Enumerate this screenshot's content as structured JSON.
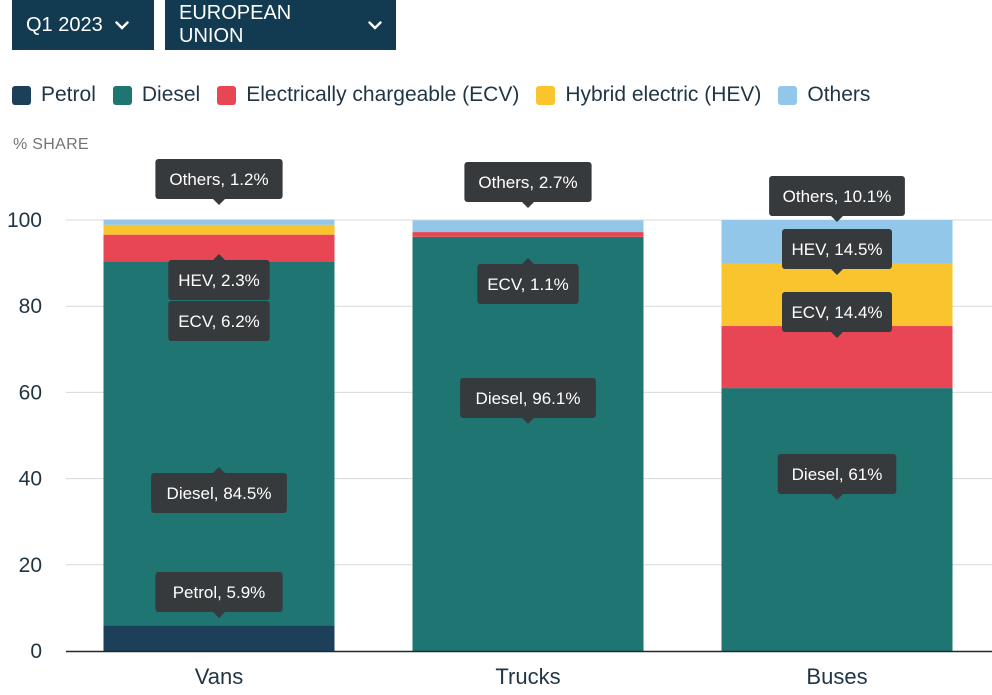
{
  "filters": {
    "period": "Q1 2023",
    "region": "EUROPEAN UNION"
  },
  "chart_data": {
    "type": "bar",
    "stacked": true,
    "ylabel": "% SHARE",
    "xlabel": "",
    "ylim": [
      0,
      100
    ],
    "yticks": [
      0,
      20,
      40,
      60,
      80,
      100
    ],
    "grid": true,
    "legend_position": "top-left",
    "categories": [
      "Vans",
      "Trucks",
      "Buses"
    ],
    "series": [
      {
        "name": "Petrol",
        "color": "#1c3f5a",
        "values": [
          5.9,
          0,
          0
        ]
      },
      {
        "name": "Diesel",
        "color": "#1f7572",
        "values": [
          84.5,
          96.1,
          61
        ]
      },
      {
        "name": "Electrically chargeable (ECV)",
        "color": "#e84654",
        "values": [
          6.2,
          1.1,
          14.4
        ]
      },
      {
        "name": "Hybrid electric (HEV)",
        "color": "#fac42f",
        "values": [
          2.3,
          0,
          14.5
        ]
      },
      {
        "name": "Others",
        "color": "#92c7e9",
        "values": [
          1.2,
          2.7,
          10.1
        ]
      }
    ],
    "data_labels": [
      {
        "category": "Vans",
        "text": "Others, 1.2%"
      },
      {
        "category": "Vans",
        "text": "HEV, 2.3%"
      },
      {
        "category": "Vans",
        "text": "ECV, 6.2%"
      },
      {
        "category": "Vans",
        "text": "Diesel, 84.5%"
      },
      {
        "category": "Vans",
        "text": "Petrol, 5.9%"
      },
      {
        "category": "Trucks",
        "text": "Others, 2.7%"
      },
      {
        "category": "Trucks",
        "text": "ECV, 1.1%"
      },
      {
        "category": "Trucks",
        "text": "Diesel, 96.1%"
      },
      {
        "category": "Buses",
        "text": "Others, 10.1%"
      },
      {
        "category": "Buses",
        "text": "HEV, 14.5%"
      },
      {
        "category": "Buses",
        "text": "ECV, 14.4%"
      },
      {
        "category": "Buses",
        "text": "Diesel, 61%"
      }
    ]
  }
}
